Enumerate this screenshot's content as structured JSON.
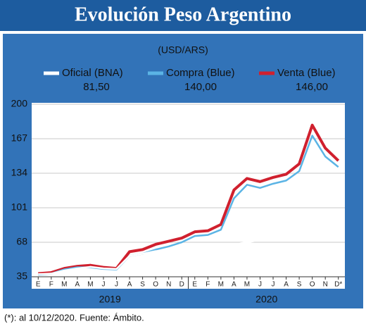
{
  "chart_data": {
    "type": "line",
    "title": "Evolución Peso Argentino",
    "subtitle": "(USD/ARS)",
    "footnote": "(*): al 10/12/2020. Fuente: Ámbito.",
    "categories": [
      "E",
      "F",
      "M",
      "A",
      "M",
      "J",
      "J",
      "A",
      "S",
      "O",
      "N",
      "D",
      "E",
      "F",
      "M",
      "A",
      "M",
      "J",
      "J",
      "A",
      "S",
      "O",
      "N",
      "D*"
    ],
    "years": [
      "2019",
      "2020"
    ],
    "ylim": [
      35,
      200
    ],
    "yticks": [
      35,
      68,
      101,
      134,
      167,
      200
    ],
    "grid": true,
    "series": [
      {
        "name": "Oficial (BNA)",
        "legend_value": "81,50",
        "color": "#ffffff",
        "values": [
          37.5,
          38,
          41,
          43,
          44.5,
          43,
          42.5,
          55,
          57,
          59.5,
          60,
          60,
          60.5,
          62,
          64,
          66,
          68,
          70,
          72,
          74,
          76,
          78.5,
          80.5,
          81.5
        ]
      },
      {
        "name": "Compra (Blue)",
        "legend_value": "140,00",
        "color": "#5bb4e5",
        "values": [
          37,
          38,
          42,
          44,
          44,
          42.5,
          42,
          55,
          57,
          61,
          64,
          68,
          74,
          75,
          80,
          110,
          123,
          120,
          124,
          127,
          136,
          170,
          150,
          140
        ]
      },
      {
        "name": "Venta (Blue)",
        "legend_value": "146,00",
        "color": "#d0202e",
        "values": [
          38,
          39,
          43,
          45,
          46,
          44,
          43,
          59,
          61,
          66,
          69,
          72,
          78,
          79,
          85,
          118,
          129,
          126,
          130,
          133,
          143,
          180,
          158,
          146
        ]
      }
    ]
  }
}
